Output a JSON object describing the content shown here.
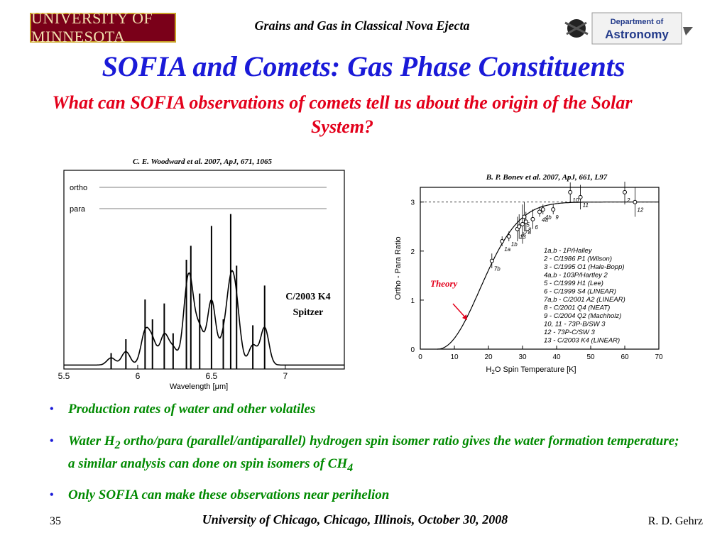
{
  "header": {
    "left_logo_text": "UNIVERSITY OF MINNESOTA",
    "title": "Grains and Gas in Classical Nova Ejecta",
    "right_logo_line1": "Department of",
    "right_logo_line2": "Astronomy"
  },
  "slide": {
    "title": "SOFIA and Comets: Gas Phase Constituents",
    "subtitle": "What can SOFIA observations of comets tell us about the origin of the Solar System?"
  },
  "left_figure": {
    "citation": "C. E. Woodward et al. 2007, ApJ, 671, 1065",
    "label_line1": "C/2003 K4",
    "label_line2": "Spitzer"
  },
  "right_figure": {
    "citation": "B. P. Bonev et al. 2007, ApJ, 661, L97",
    "theory_label": "Theory"
  },
  "bullets": [
    "Production rates of water and other volatiles",
    "Water H2 ortho/para (parallel/antiparallel) hydrogen spin isomer ratio gives the water  formation temperature; a similar analysis can done on spin isomers of CH4",
    "Only SOFIA can make these observations near perihelion"
  ],
  "bullet2_parts": {
    "a": "Water H",
    "sub1": "2",
    "b": " ortho/para (parallel/antiparallel) hydrogen spin isomer ratio gives the water  formation temperature; a similar analysis can done on spin isomers of CH",
    "sub2": "4"
  },
  "footer": {
    "slide_number": "35",
    "venue": "University of Chicago, Chicago, Illinois, October 30, 2008",
    "author": "R. D. Gehrz"
  },
  "chart_data": [
    {
      "type": "line",
      "xlabel": "Wavelength [μm]",
      "xlim": [
        5.5,
        7.4
      ],
      "x_ticks": [
        "5.5",
        "6",
        "6.5",
        "7"
      ],
      "rows": [
        "ortho",
        "para"
      ],
      "peaks": [
        {
          "x": 5.82,
          "y": 0.08
        },
        {
          "x": 5.92,
          "y": 0.15
        },
        {
          "x": 6.05,
          "y": 0.35
        },
        {
          "x": 6.1,
          "y": 0.25
        },
        {
          "x": 6.18,
          "y": 0.33
        },
        {
          "x": 6.24,
          "y": 0.18
        },
        {
          "x": 6.33,
          "y": 0.55
        },
        {
          "x": 6.36,
          "y": 0.62
        },
        {
          "x": 6.42,
          "y": 0.38
        },
        {
          "x": 6.5,
          "y": 0.72
        },
        {
          "x": 6.58,
          "y": 0.25
        },
        {
          "x": 6.63,
          "y": 0.78
        },
        {
          "x": 6.67,
          "y": 0.52
        },
        {
          "x": 6.78,
          "y": 0.22
        },
        {
          "x": 6.86,
          "y": 0.42
        }
      ]
    },
    {
      "type": "scatter",
      "xlabel": "H2O Spin Temperature [K]",
      "ylabel": "Ortho - Para Ratio",
      "xlim": [
        0,
        70
      ],
      "ylim": [
        0,
        3.3
      ],
      "x_ticks": [
        "0",
        "10",
        "20",
        "30",
        "40",
        "50",
        "60",
        "70"
      ],
      "y_ticks": [
        "0",
        "1",
        "2",
        "3"
      ],
      "points": [
        {
          "label": "7b",
          "x": 21,
          "y": 1.8,
          "err": 0.15
        },
        {
          "label": "1b",
          "x": 26,
          "y": 2.3,
          "err": 0.1
        },
        {
          "label": "1a",
          "x": 24,
          "y": 2.2,
          "err": 0.1
        },
        {
          "label": "13",
          "x": 28.5,
          "y": 2.45,
          "err": 0.25
        },
        {
          "label": "3",
          "x": 29,
          "y": 2.5,
          "err": 0.25
        },
        {
          "label": "7a",
          "x": 30,
          "y": 2.55,
          "err": 0.4
        },
        {
          "label": "8",
          "x": 31,
          "y": 2.6,
          "err": 0.2
        },
        {
          "label": "5",
          "x": 30.5,
          "y": 2.7,
          "err": 0.3
        },
        {
          "label": "6",
          "x": 33,
          "y": 2.65,
          "err": 0.2
        },
        {
          "label": "4a",
          "x": 35,
          "y": 2.8,
          "err": 0.1
        },
        {
          "label": "4b",
          "x": 36,
          "y": 2.85,
          "err": 0.1
        },
        {
          "label": "9",
          "x": 39,
          "y": 2.85,
          "err": 0.1
        },
        {
          "label": "10",
          "x": 44,
          "y": 3.2,
          "err": 0.2
        },
        {
          "label": "11",
          "x": 47,
          "y": 3.1,
          "err": 0.25
        },
        {
          "label": "2",
          "x": 60,
          "y": 3.2,
          "err": 0.25
        },
        {
          "label": "12",
          "x": 63,
          "y": 3.0,
          "err": 0.3
        }
      ],
      "legend": [
        "1a,b -  1P/Halley",
        "2 -  C/1986 P1 (Wilson)",
        "3 -  C/1995 O1 (Hale-Bopp)",
        "4a,b - 103P/Hartley 2",
        "5 -  C/1999 H1 (Lee)",
        "6 -  C/1999 S4 (LINEAR)",
        "7a,b - C/2001 A2 (LINEAR)",
        "8 -  C/2001 Q4 (NEAT)",
        "9 -  C/2004 Q2 (Machholz)",
        "10, 11 - 73P-B/SW 3",
        "12 - 73P-C/SW 3",
        "13 - C/2003 K4 (LINEAR)"
      ]
    }
  ]
}
